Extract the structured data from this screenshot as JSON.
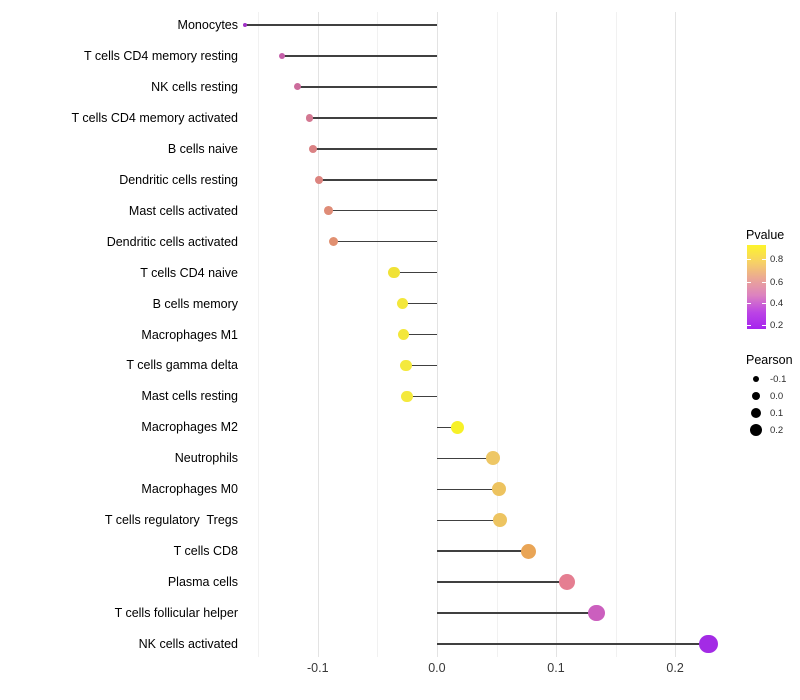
{
  "chart_data": {
    "type": "lollipop",
    "orientation": "horizontal",
    "title": "",
    "xlabel": "",
    "ylabel": "",
    "categories": [
      "Monocytes",
      "T cells CD4 memory resting",
      "NK cells resting",
      "T cells CD4 memory activated",
      "B cells naive",
      "Dendritic cells resting",
      "Mast cells activated",
      "Dendritic cells activated",
      "T cells CD4 naive",
      "B cells memory",
      "Macrophages M1",
      "T cells gamma delta",
      "Mast cells resting",
      "Macrophages M2",
      "Neutrophils",
      "Macrophages M0",
      "T cells regulatory  Tregs",
      "T cells CD8",
      "Plasma cells",
      "T cells follicular helper",
      "NK cells activated"
    ],
    "series": [
      {
        "name": "Pearson",
        "values": [
          -0.161,
          -0.13,
          -0.117,
          -0.107,
          -0.104,
          -0.099,
          -0.091,
          -0.087,
          -0.036,
          -0.029,
          -0.028,
          -0.026,
          -0.025,
          0.017,
          0.047,
          0.052,
          0.053,
          0.077,
          0.109,
          0.134,
          0.228
        ]
      }
    ],
    "point_colors": [
      "#A132C6",
      "#C55FA9",
      "#CC6C9C",
      "#D37892",
      "#DA8284",
      "#DC847F",
      "#DF8C77",
      "#E19071",
      "#F0E236",
      "#F3E73B",
      "#F3E73A",
      "#F4E93D",
      "#F4E93D",
      "#F7F128",
      "#EEC765",
      "#EDC35F",
      "#EDC461",
      "#E9A556",
      "#E57E91",
      "#CB5FBE",
      "#A32BE5"
    ],
    "stem_color": "#404040",
    "x_axis": {
      "tick_labels": [
        "-0.1",
        "0.0",
        "0.1",
        "0.2"
      ],
      "tick_values": [
        -0.1,
        0.0,
        0.1,
        0.2
      ],
      "minor_tick_values": [
        -0.15,
        -0.05,
        0.05,
        0.15
      ],
      "lim": [
        -0.162,
        0.231
      ]
    },
    "grid": "vertical-only",
    "legend_position": "right",
    "legends": {
      "pvalue": {
        "title": "Pvalue",
        "tick_labels": [
          "0.8",
          "0.6",
          "0.4",
          "0.2"
        ],
        "gradient": [
          "#FDF42B",
          "#F7D264",
          "#EBA795",
          "#DC82C0",
          "#BC45E5",
          "#A524EE"
        ]
      },
      "pearson": {
        "title": "Pearson",
        "items": [
          {
            "label": "-0.1",
            "radius": 3.3
          },
          {
            "label": "0.0",
            "radius": 4.4
          },
          {
            "label": "0.1",
            "radius": 5.3
          },
          {
            "label": "0.2",
            "radius": 6.2
          }
        ]
      }
    }
  }
}
